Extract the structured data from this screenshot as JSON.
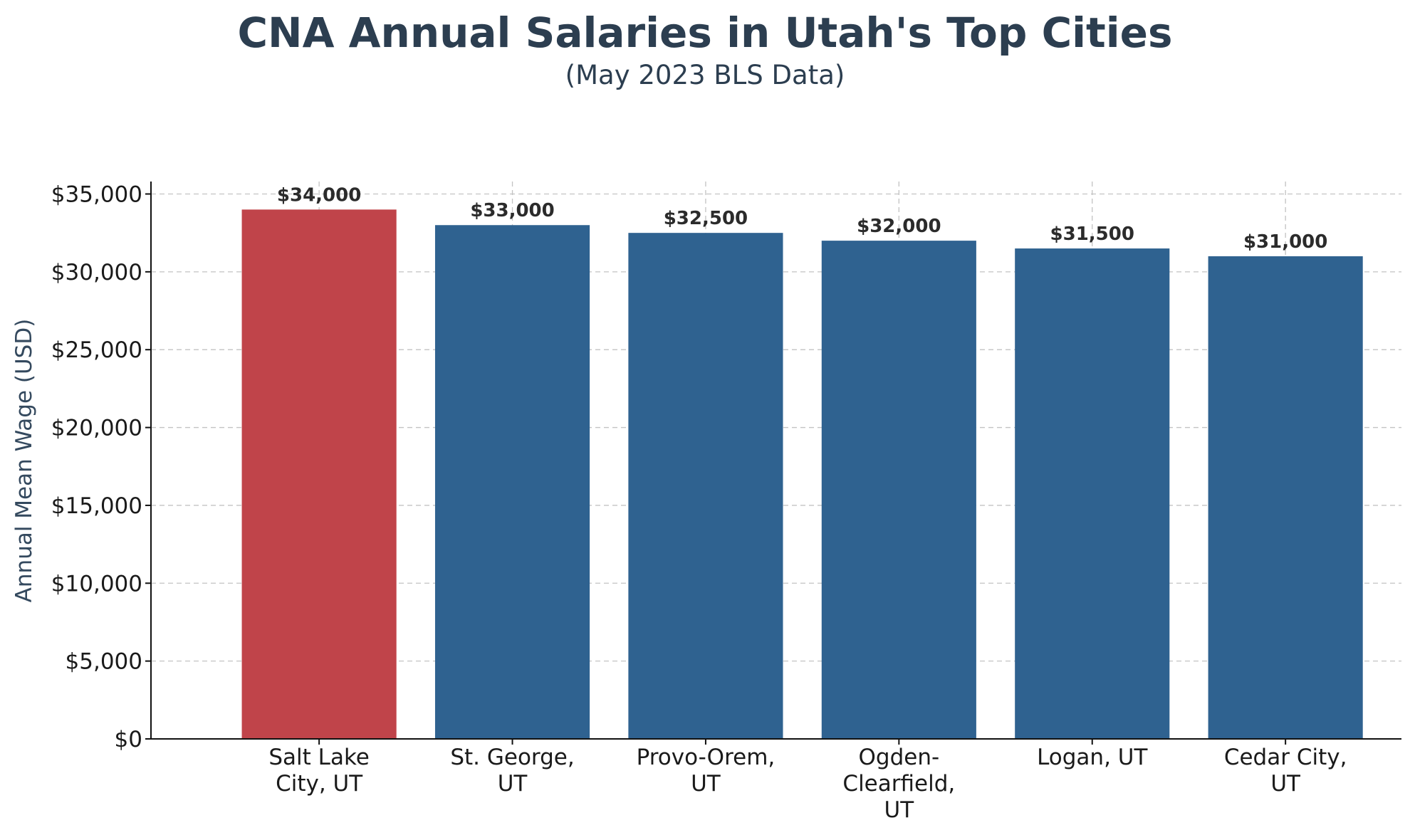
{
  "chart_data": {
    "type": "bar",
    "title": "CNA Annual Salaries in Utah's Top Cities",
    "subtitle": "(May 2023 BLS Data)",
    "xlabel": "",
    "ylabel": "Annual Mean Wage (USD)",
    "ylim": [
      0,
      35800
    ],
    "yticks": [
      0,
      5000,
      10000,
      15000,
      20000,
      25000,
      30000,
      35000
    ],
    "ytick_labels": [
      "$0",
      "$5,000",
      "$10,000",
      "$15,000",
      "$20,000",
      "$25,000",
      "$30,000",
      "$35,000"
    ],
    "grid": true,
    "categories": [
      [
        "Salt Lake",
        "City, UT"
      ],
      [
        "St. George,",
        "UT"
      ],
      [
        "Provo-Orem,",
        "UT"
      ],
      [
        "Ogden-",
        "Clearfield,",
        "UT"
      ],
      [
        "Logan, UT"
      ],
      [
        "Cedar City,",
        "UT"
      ]
    ],
    "values": [
      34000,
      33000,
      32500,
      32000,
      31500,
      31000
    ],
    "data_labels": [
      "$34,000",
      "$33,000",
      "$32,500",
      "$32,000",
      "$31,500",
      "$31,000"
    ],
    "colors": [
      "#c0444a",
      "#2f6290",
      "#2f6290",
      "#2f6290",
      "#2f6290",
      "#2f6290"
    ]
  }
}
